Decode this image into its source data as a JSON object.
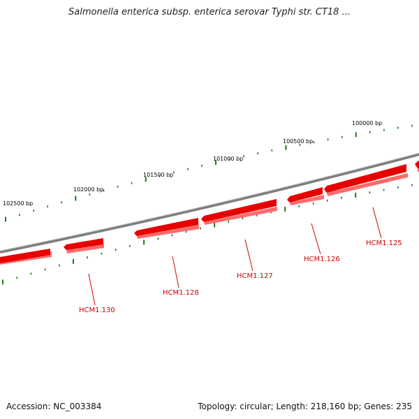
{
  "header": {
    "title": "Salmonella enterica subsp. enterica serovar Typhi str. CT18 ..."
  },
  "footer": {
    "accession": "Accession: NC_003384",
    "summary": "Topology: circular; Length: 218,160 bp; Genes: 235"
  },
  "map": {
    "scale_labels": [
      "100000 bp",
      "100500 bp",
      "101000 bp",
      "101500 bp",
      "102000 bp",
      "102500 bp"
    ],
    "genes": [
      "HCM1.125",
      "HCM1.126",
      "HCM1.127",
      "HCM1.128",
      "HCM1.130"
    ],
    "colors": {
      "backbone": "#808080",
      "gene": "#e60000",
      "gene_shadow": "#ff7070",
      "ticks": "#1e7a1e",
      "label": "#cc0000"
    }
  }
}
